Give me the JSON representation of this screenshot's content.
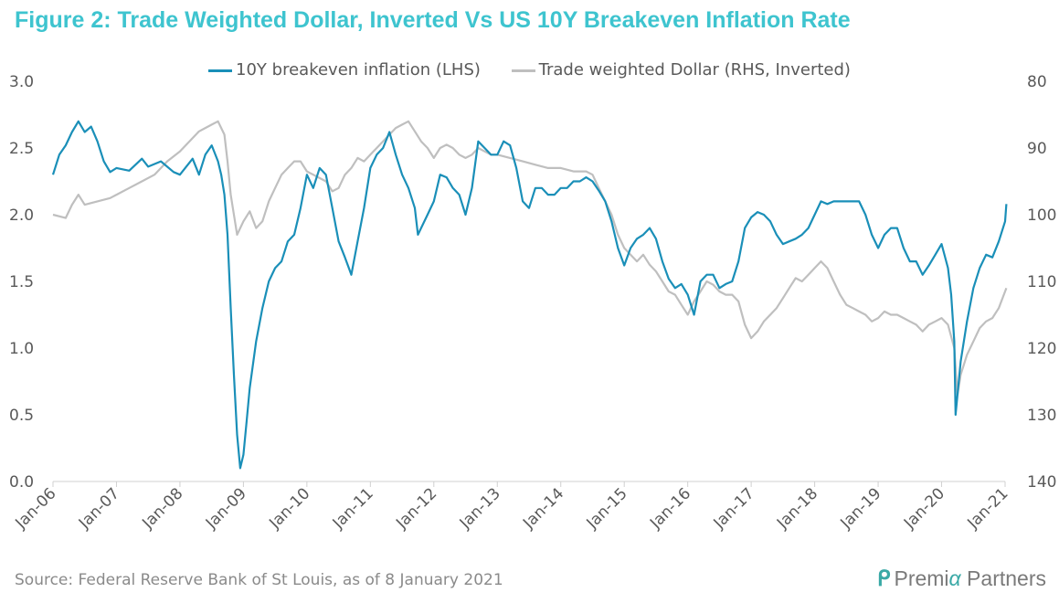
{
  "chart_data": {
    "type": "line",
    "title": "Figure 2: Trade Weighted Dollar, Inverted Vs US 10Y Breakeven Inflation Rate",
    "x_ticks": [
      "Jan-06",
      "Jan-07",
      "Jan-08",
      "Jan-09",
      "Jan-10",
      "Jan-11",
      "Jan-12",
      "Jan-13",
      "Jan-14",
      "Jan-15",
      "Jan-16",
      "Jan-17",
      "Jan-18",
      "Jan-19",
      "Jan-20",
      "Jan-21"
    ],
    "xlim": [
      2006.0,
      2021.0
    ],
    "y_left": {
      "ylim": [
        0.0,
        3.0
      ],
      "ticks": [
        "0.0",
        "0.5",
        "1.0",
        "1.5",
        "2.0",
        "2.5",
        "3.0"
      ]
    },
    "y_right": {
      "ylim": [
        140,
        80
      ],
      "inverted": true,
      "ticks": [
        "80",
        "90",
        "100",
        "110",
        "120",
        "130",
        "140"
      ]
    },
    "legend_position": "top",
    "grid": false,
    "series": [
      {
        "name": "10Y breakeven inflation (LHS)",
        "axis": "left",
        "color": "#1a8fb8",
        "points": [
          [
            2006.0,
            2.3
          ],
          [
            2006.1,
            2.45
          ],
          [
            2006.2,
            2.52
          ],
          [
            2006.3,
            2.62
          ],
          [
            2006.4,
            2.7
          ],
          [
            2006.5,
            2.62
          ],
          [
            2006.6,
            2.66
          ],
          [
            2006.7,
            2.55
          ],
          [
            2006.8,
            2.4
          ],
          [
            2006.9,
            2.32
          ],
          [
            2007.0,
            2.35
          ],
          [
            2007.2,
            2.33
          ],
          [
            2007.4,
            2.42
          ],
          [
            2007.5,
            2.36
          ],
          [
            2007.7,
            2.4
          ],
          [
            2007.9,
            2.32
          ],
          [
            2008.0,
            2.3
          ],
          [
            2008.2,
            2.42
          ],
          [
            2008.3,
            2.3
          ],
          [
            2008.4,
            2.45
          ],
          [
            2008.5,
            2.52
          ],
          [
            2008.6,
            2.4
          ],
          [
            2008.65,
            2.3
          ],
          [
            2008.7,
            2.15
          ],
          [
            2008.75,
            1.85
          ],
          [
            2008.8,
            1.3
          ],
          [
            2008.85,
            0.8
          ],
          [
            2008.9,
            0.35
          ],
          [
            2008.95,
            0.1
          ],
          [
            2009.0,
            0.2
          ],
          [
            2009.05,
            0.45
          ],
          [
            2009.1,
            0.7
          ],
          [
            2009.2,
            1.05
          ],
          [
            2009.3,
            1.3
          ],
          [
            2009.4,
            1.5
          ],
          [
            2009.5,
            1.6
          ],
          [
            2009.6,
            1.65
          ],
          [
            2009.7,
            1.8
          ],
          [
            2009.8,
            1.85
          ],
          [
            2009.9,
            2.05
          ],
          [
            2010.0,
            2.3
          ],
          [
            2010.1,
            2.2
          ],
          [
            2010.2,
            2.35
          ],
          [
            2010.3,
            2.3
          ],
          [
            2010.4,
            2.05
          ],
          [
            2010.5,
            1.8
          ],
          [
            2010.6,
            1.68
          ],
          [
            2010.7,
            1.55
          ],
          [
            2010.8,
            1.8
          ],
          [
            2010.9,
            2.05
          ],
          [
            2011.0,
            2.35
          ],
          [
            2011.1,
            2.45
          ],
          [
            2011.2,
            2.5
          ],
          [
            2011.3,
            2.62
          ],
          [
            2011.4,
            2.45
          ],
          [
            2011.5,
            2.3
          ],
          [
            2011.6,
            2.2
          ],
          [
            2011.7,
            2.05
          ],
          [
            2011.75,
            1.85
          ],
          [
            2011.9,
            2.0
          ],
          [
            2012.0,
            2.1
          ],
          [
            2012.1,
            2.3
          ],
          [
            2012.2,
            2.28
          ],
          [
            2012.3,
            2.2
          ],
          [
            2012.4,
            2.15
          ],
          [
            2012.5,
            2.0
          ],
          [
            2012.6,
            2.2
          ],
          [
            2012.7,
            2.55
          ],
          [
            2012.8,
            2.5
          ],
          [
            2012.9,
            2.45
          ],
          [
            2013.0,
            2.45
          ],
          [
            2013.1,
            2.55
          ],
          [
            2013.2,
            2.52
          ],
          [
            2013.3,
            2.35
          ],
          [
            2013.4,
            2.1
          ],
          [
            2013.5,
            2.05
          ],
          [
            2013.6,
            2.2
          ],
          [
            2013.7,
            2.2
          ],
          [
            2013.8,
            2.15
          ],
          [
            2013.9,
            2.15
          ],
          [
            2014.0,
            2.2
          ],
          [
            2014.1,
            2.2
          ],
          [
            2014.2,
            2.25
          ],
          [
            2014.3,
            2.25
          ],
          [
            2014.4,
            2.28
          ],
          [
            2014.5,
            2.25
          ],
          [
            2014.6,
            2.18
          ],
          [
            2014.7,
            2.1
          ],
          [
            2014.8,
            1.95
          ],
          [
            2014.9,
            1.75
          ],
          [
            2015.0,
            1.62
          ],
          [
            2015.1,
            1.75
          ],
          [
            2015.2,
            1.82
          ],
          [
            2015.3,
            1.85
          ],
          [
            2015.4,
            1.9
          ],
          [
            2015.5,
            1.82
          ],
          [
            2015.6,
            1.65
          ],
          [
            2015.7,
            1.52
          ],
          [
            2015.8,
            1.45
          ],
          [
            2015.9,
            1.48
          ],
          [
            2016.0,
            1.4
          ],
          [
            2016.1,
            1.25
          ],
          [
            2016.2,
            1.5
          ],
          [
            2016.3,
            1.55
          ],
          [
            2016.4,
            1.55
          ],
          [
            2016.5,
            1.45
          ],
          [
            2016.6,
            1.48
          ],
          [
            2016.7,
            1.5
          ],
          [
            2016.8,
            1.65
          ],
          [
            2016.9,
            1.9
          ],
          [
            2017.0,
            1.98
          ],
          [
            2017.1,
            2.02
          ],
          [
            2017.2,
            2.0
          ],
          [
            2017.3,
            1.95
          ],
          [
            2017.4,
            1.85
          ],
          [
            2017.5,
            1.78
          ],
          [
            2017.6,
            1.8
          ],
          [
            2017.7,
            1.82
          ],
          [
            2017.8,
            1.85
          ],
          [
            2017.9,
            1.9
          ],
          [
            2018.0,
            2.0
          ],
          [
            2018.1,
            2.1
          ],
          [
            2018.2,
            2.08
          ],
          [
            2018.3,
            2.1
          ],
          [
            2018.4,
            2.1
          ],
          [
            2018.5,
            2.1
          ],
          [
            2018.6,
            2.1
          ],
          [
            2018.7,
            2.1
          ],
          [
            2018.8,
            2.0
          ],
          [
            2018.9,
            1.85
          ],
          [
            2019.0,
            1.75
          ],
          [
            2019.1,
            1.85
          ],
          [
            2019.2,
            1.9
          ],
          [
            2019.3,
            1.9
          ],
          [
            2019.4,
            1.75
          ],
          [
            2019.5,
            1.65
          ],
          [
            2019.6,
            1.65
          ],
          [
            2019.7,
            1.55
          ],
          [
            2019.8,
            1.62
          ],
          [
            2019.9,
            1.7
          ],
          [
            2020.0,
            1.78
          ],
          [
            2020.1,
            1.6
          ],
          [
            2020.15,
            1.4
          ],
          [
            2020.2,
            1.05
          ],
          [
            2020.22,
            0.5
          ],
          [
            2020.3,
            0.9
          ],
          [
            2020.4,
            1.2
          ],
          [
            2020.5,
            1.45
          ],
          [
            2020.6,
            1.6
          ],
          [
            2020.7,
            1.7
          ],
          [
            2020.8,
            1.68
          ],
          [
            2020.9,
            1.8
          ],
          [
            2021.0,
            1.95
          ],
          [
            2021.02,
            2.08
          ]
        ]
      },
      {
        "name": "Trade weighted Dollar (RHS, Inverted)",
        "axis": "right",
        "color": "#bfbfbf",
        "points": [
          [
            2006.0,
            100.0
          ],
          [
            2006.2,
            100.5
          ],
          [
            2006.3,
            98.5
          ],
          [
            2006.4,
            97.0
          ],
          [
            2006.5,
            98.5
          ],
          [
            2006.7,
            98.0
          ],
          [
            2006.9,
            97.5
          ],
          [
            2007.0,
            97.0
          ],
          [
            2007.2,
            96.0
          ],
          [
            2007.4,
            95.0
          ],
          [
            2007.6,
            94.0
          ],
          [
            2007.8,
            92.0
          ],
          [
            2008.0,
            90.5
          ],
          [
            2008.2,
            88.5
          ],
          [
            2008.3,
            87.5
          ],
          [
            2008.4,
            87.0
          ],
          [
            2008.5,
            86.5
          ],
          [
            2008.6,
            86.0
          ],
          [
            2008.7,
            88.0
          ],
          [
            2008.75,
            92.0
          ],
          [
            2008.8,
            97.0
          ],
          [
            2008.85,
            100.0
          ],
          [
            2008.9,
            103.0
          ],
          [
            2009.0,
            101.0
          ],
          [
            2009.1,
            99.5
          ],
          [
            2009.2,
            102.0
          ],
          [
            2009.3,
            101.0
          ],
          [
            2009.4,
            98.0
          ],
          [
            2009.5,
            96.0
          ],
          [
            2009.6,
            94.0
          ],
          [
            2009.7,
            93.0
          ],
          [
            2009.8,
            92.0
          ],
          [
            2009.9,
            92.0
          ],
          [
            2010.0,
            93.5
          ],
          [
            2010.1,
            94.0
          ],
          [
            2010.2,
            94.5
          ],
          [
            2010.3,
            95.0
          ],
          [
            2010.4,
            96.5
          ],
          [
            2010.5,
            96.0
          ],
          [
            2010.6,
            94.0
          ],
          [
            2010.7,
            93.0
          ],
          [
            2010.8,
            91.5
          ],
          [
            2010.9,
            92.0
          ],
          [
            2011.0,
            91.0
          ],
          [
            2011.1,
            90.0
          ],
          [
            2011.2,
            89.0
          ],
          [
            2011.3,
            88.0
          ],
          [
            2011.4,
            87.0
          ],
          [
            2011.5,
            86.5
          ],
          [
            2011.6,
            86.0
          ],
          [
            2011.7,
            87.5
          ],
          [
            2011.8,
            89.0
          ],
          [
            2011.9,
            90.0
          ],
          [
            2012.0,
            91.5
          ],
          [
            2012.1,
            90.0
          ],
          [
            2012.2,
            89.5
          ],
          [
            2012.3,
            90.0
          ],
          [
            2012.4,
            91.0
          ],
          [
            2012.5,
            91.5
          ],
          [
            2012.6,
            91.0
          ],
          [
            2012.7,
            90.0
          ],
          [
            2012.8,
            90.5
          ],
          [
            2012.9,
            91.0
          ],
          [
            2013.0,
            91.0
          ],
          [
            2013.2,
            91.5
          ],
          [
            2013.4,
            92.0
          ],
          [
            2013.6,
            92.5
          ],
          [
            2013.8,
            93.0
          ],
          [
            2014.0,
            93.0
          ],
          [
            2014.2,
            93.5
          ],
          [
            2014.4,
            93.5
          ],
          [
            2014.5,
            94.0
          ],
          [
            2014.6,
            96.0
          ],
          [
            2014.7,
            98.0
          ],
          [
            2014.8,
            100.0
          ],
          [
            2014.9,
            103.0
          ],
          [
            2015.0,
            105.0
          ],
          [
            2015.2,
            107.0
          ],
          [
            2015.3,
            106.0
          ],
          [
            2015.4,
            107.5
          ],
          [
            2015.5,
            108.5
          ],
          [
            2015.6,
            110.0
          ],
          [
            2015.7,
            111.5
          ],
          [
            2015.8,
            112.0
          ],
          [
            2015.9,
            113.5
          ],
          [
            2016.0,
            115.0
          ],
          [
            2016.1,
            113.0
          ],
          [
            2016.2,
            111.5
          ],
          [
            2016.3,
            110.0
          ],
          [
            2016.4,
            110.5
          ],
          [
            2016.5,
            111.5
          ],
          [
            2016.6,
            112.0
          ],
          [
            2016.7,
            112.0
          ],
          [
            2016.8,
            113.0
          ],
          [
            2016.9,
            116.5
          ],
          [
            2017.0,
            118.5
          ],
          [
            2017.1,
            117.5
          ],
          [
            2017.2,
            116.0
          ],
          [
            2017.3,
            115.0
          ],
          [
            2017.4,
            114.0
          ],
          [
            2017.5,
            112.5
          ],
          [
            2017.6,
            111.0
          ],
          [
            2017.7,
            109.5
          ],
          [
            2017.8,
            110.0
          ],
          [
            2017.9,
            109.0
          ],
          [
            2018.0,
            108.0
          ],
          [
            2018.1,
            107.0
          ],
          [
            2018.2,
            108.0
          ],
          [
            2018.3,
            110.0
          ],
          [
            2018.4,
            112.0
          ],
          [
            2018.5,
            113.5
          ],
          [
            2018.6,
            114.0
          ],
          [
            2018.7,
            114.5
          ],
          [
            2018.8,
            115.0
          ],
          [
            2018.9,
            116.0
          ],
          [
            2019.0,
            115.5
          ],
          [
            2019.1,
            114.5
          ],
          [
            2019.2,
            115.0
          ],
          [
            2019.3,
            115.0
          ],
          [
            2019.4,
            115.5
          ],
          [
            2019.5,
            116.0
          ],
          [
            2019.6,
            116.5
          ],
          [
            2019.7,
            117.5
          ],
          [
            2019.8,
            116.5
          ],
          [
            2019.9,
            116.0
          ],
          [
            2020.0,
            115.5
          ],
          [
            2020.1,
            116.5
          ],
          [
            2020.2,
            120.0
          ],
          [
            2020.25,
            127.0
          ],
          [
            2020.3,
            124.0
          ],
          [
            2020.4,
            121.0
          ],
          [
            2020.5,
            119.0
          ],
          [
            2020.6,
            117.0
          ],
          [
            2020.7,
            116.0
          ],
          [
            2020.8,
            115.5
          ],
          [
            2020.9,
            114.0
          ],
          [
            2021.0,
            111.5
          ],
          [
            2021.02,
            111.0
          ]
        ]
      }
    ]
  },
  "legend": {
    "item1": "10Y breakeven inflation (LHS)",
    "item2": "Trade weighted Dollar (RHS, Inverted)"
  },
  "footer": {
    "source": "Source: Federal Reserve Bank of St Louis, as of 8 January 2021",
    "logo_part1": "Premi",
    "logo_alpha": "α",
    "logo_part2": " Partners"
  }
}
